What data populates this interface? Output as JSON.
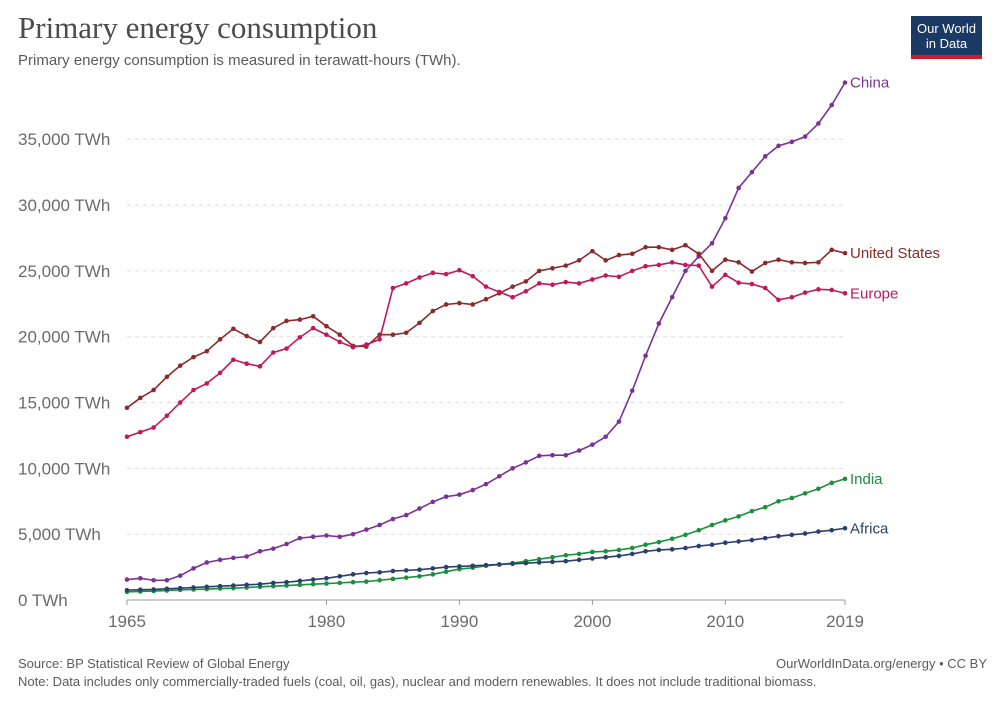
{
  "header": {
    "title": "Primary energy consumption",
    "subtitle": "Primary energy consumption is measured in terawatt-hours (TWh).",
    "logo_line1": "Our World",
    "logo_line2": "in Data"
  },
  "footer": {
    "source": "Source: BP Statistical Review of Global Energy",
    "note": "Note: Data includes only commercially-traded fuels (coal, oil, gas), nuclear and modern renewables. It does not include traditional biomass.",
    "credit": "OurWorldInData.org/energy • CC BY"
  },
  "chart_data": {
    "type": "line",
    "title": "Primary energy consumption",
    "subtitle": "Primary energy consumption is measured in terawatt-hours (TWh).",
    "xlim": [
      1965,
      2019
    ],
    "ylim": [
      0,
      37500
    ],
    "x_ticks": [
      1965,
      1980,
      1990,
      2000,
      2010,
      2019
    ],
    "y_ticks": [
      0,
      5000,
      10000,
      15000,
      20000,
      25000,
      30000,
      35000
    ],
    "y_tick_labels": [
      "0 TWh",
      "5,000 TWh",
      "10,000 TWh",
      "15,000 TWh",
      "20,000 TWh",
      "25,000 TWh",
      "30,000 TWh",
      "35,000 TWh"
    ],
    "grid": "horizontal dashed",
    "legend": "labels at line ends (right)",
    "x": [
      1965,
      1966,
      1967,
      1968,
      1969,
      1970,
      1971,
      1972,
      1973,
      1974,
      1975,
      1976,
      1977,
      1978,
      1979,
      1980,
      1981,
      1982,
      1983,
      1984,
      1985,
      1986,
      1987,
      1988,
      1989,
      1990,
      1991,
      1992,
      1993,
      1994,
      1995,
      1996,
      1997,
      1998,
      1999,
      2000,
      2001,
      2002,
      2003,
      2004,
      2005,
      2006,
      2007,
      2008,
      2009,
      2010,
      2011,
      2012,
      2013,
      2014,
      2015,
      2016,
      2017,
      2018,
      2019
    ],
    "series": [
      {
        "name": "China",
        "color": "#7b3294",
        "values": [
          1550,
          1650,
          1500,
          1500,
          1850,
          2400,
          2850,
          3050,
          3200,
          3300,
          3700,
          3900,
          4250,
          4700,
          4800,
          4900,
          4800,
          5000,
          5350,
          5700,
          6150,
          6450,
          6950,
          7450,
          7850,
          8000,
          8350,
          8800,
          9400,
          10000,
          10450,
          10950,
          11000,
          11000,
          11350,
          11800,
          12400,
          13550,
          15900,
          18550,
          21000,
          23000,
          25000,
          26100,
          27100,
          29000,
          31300,
          32500,
          33700,
          34500,
          34800,
          35200,
          36200,
          37600,
          39300
        ]
      },
      {
        "name": "United States",
        "color": "#8b2a2a",
        "values": [
          14600,
          15350,
          15950,
          16950,
          17800,
          18450,
          18900,
          19800,
          20600,
          20050,
          19600,
          20650,
          21200,
          21300,
          21550,
          20800,
          20150,
          19300,
          19250,
          20150,
          20150,
          20300,
          21050,
          21950,
          22450,
          22550,
          22450,
          22850,
          23300,
          23800,
          24200,
          25000,
          25200,
          25400,
          25800,
          26500,
          25800,
          26200,
          26300,
          26800,
          26800,
          26600,
          26950,
          26300,
          25000,
          25850,
          25650,
          24950,
          25600,
          25850,
          25650,
          25600,
          25650,
          26600,
          26350
        ]
      },
      {
        "name": "Europe",
        "color": "#c2185b",
        "values": [
          12400,
          12750,
          13100,
          14000,
          15000,
          15950,
          16450,
          17250,
          18250,
          17950,
          17750,
          18800,
          19100,
          19950,
          20650,
          20150,
          19600,
          19200,
          19400,
          19800,
          23700,
          24050,
          24500,
          24850,
          24750,
          25050,
          24600,
          23800,
          23400,
          23000,
          23450,
          24050,
          23950,
          24150,
          24050,
          24350,
          24650,
          24550,
          25000,
          25350,
          25450,
          25650,
          25450,
          25400,
          23800,
          24700,
          24100,
          24000,
          23700,
          22800,
          23000,
          23350,
          23600,
          23550,
          23300
        ]
      },
      {
        "name": "India",
        "color": "#1a8f3c",
        "values": [
          620,
          650,
          680,
          720,
          770,
          800,
          830,
          870,
          900,
          950,
          1000,
          1050,
          1100,
          1150,
          1200,
          1250,
          1300,
          1350,
          1400,
          1500,
          1600,
          1700,
          1800,
          1950,
          2150,
          2350,
          2450,
          2600,
          2700,
          2800,
          2950,
          3100,
          3250,
          3400,
          3500,
          3650,
          3700,
          3800,
          3950,
          4200,
          4400,
          4650,
          4950,
          5300,
          5700,
          6050,
          6350,
          6750,
          7050,
          7500,
          7750,
          8100,
          8450,
          8900,
          9200
        ]
      },
      {
        "name": "Africa",
        "color": "#2a3f6e",
        "values": [
          750,
          780,
          800,
          850,
          900,
          950,
          1000,
          1050,
          1100,
          1150,
          1200,
          1300,
          1350,
          1450,
          1550,
          1650,
          1800,
          1950,
          2050,
          2100,
          2200,
          2250,
          2300,
          2400,
          2500,
          2550,
          2600,
          2650,
          2700,
          2750,
          2800,
          2850,
          2900,
          2950,
          3050,
          3150,
          3250,
          3350,
          3500,
          3700,
          3800,
          3850,
          3950,
          4100,
          4200,
          4350,
          4450,
          4550,
          4700,
          4850,
          4950,
          5050,
          5200,
          5300,
          5450
        ]
      }
    ]
  }
}
